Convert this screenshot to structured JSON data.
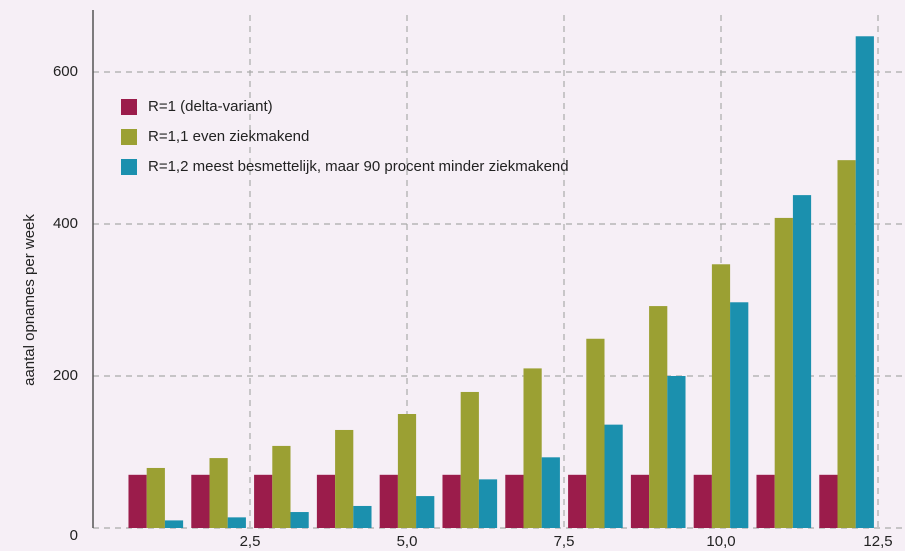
{
  "chart_data": {
    "type": "bar",
    "ylabel": "aantal opnames per week",
    "x": [
      1,
      2,
      3,
      4,
      5,
      6,
      7,
      8,
      9,
      10,
      11,
      12
    ],
    "series": [
      {
        "name": "R=1 (delta-variant)",
        "color": "#9b1c4b",
        "values": [
          70,
          70,
          70,
          70,
          70,
          70,
          70,
          70,
          70,
          70,
          70,
          70
        ]
      },
      {
        "name": "R=1,1 even ziekmakend",
        "color": "#9ba033",
        "values": [
          79,
          92,
          108,
          129,
          150,
          179,
          210,
          249,
          292,
          347,
          408,
          484
        ]
      },
      {
        "name": "R=1,2 meest besmettelijk, maar 90 procent minder ziekmakend",
        "color": "#1b90ae",
        "values": [
          10,
          14,
          21,
          29,
          42,
          64,
          93,
          136,
          200,
          297,
          438,
          647
        ]
      }
    ],
    "xlim": [
      0,
      12.5
    ],
    "xticks": [
      {
        "value": 2.5,
        "label": "2,5"
      },
      {
        "value": 5.0,
        "label": "5,0"
      },
      {
        "value": 7.5,
        "label": "7,5"
      },
      {
        "value": 10.0,
        "label": "10,0"
      },
      {
        "value": 12.5,
        "label": "12,5"
      }
    ],
    "ylim": [
      0,
      675
    ],
    "yticks": [
      0,
      200,
      400,
      600
    ],
    "grid": true,
    "legend": "upper left"
  }
}
